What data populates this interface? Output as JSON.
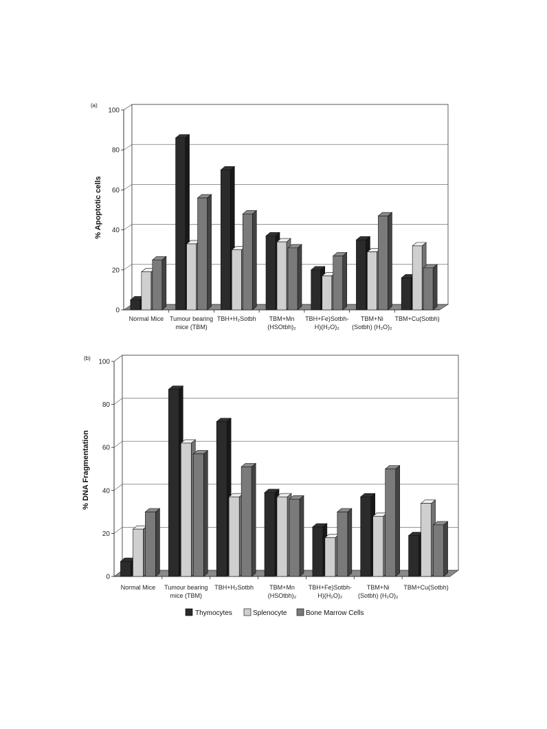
{
  "colors": {
    "thymocytes": "#2b2b2b",
    "splenocyte": "#cfcfcf",
    "bone_marrow": "#7a7a7a",
    "floor": "#8a8a8a",
    "grid": "#555555"
  },
  "legend": {
    "items": [
      {
        "label": "Thymocytes",
        "color": "#2b2b2b"
      },
      {
        "label": "Splenocyte",
        "color": "#cfcfcf"
      },
      {
        "label": "Bone Marrow  Cells",
        "color": "#7a7a7a"
      }
    ]
  },
  "chart_data": [
    {
      "panel": "(a)",
      "type": "bar",
      "ylabel": "% Apoptotic cells",
      "ylim": [
        0,
        100
      ],
      "yticks": [
        "0",
        "20",
        "40",
        "60",
        "80",
        "100"
      ],
      "grid": true,
      "categories": [
        [
          "Normal Mice"
        ],
        [
          "Tumour bearing",
          "mice (TBM)"
        ],
        [
          "TBH+H₂Sotbh"
        ],
        [
          "TBM+Mn",
          "(HSOtbh)₂"
        ],
        [
          "TBH+Fe)Sotbh-",
          "H)(H₂O)₂"
        ],
        [
          "TBM+Ni",
          "(Sotbh) (H₂O)₂"
        ],
        [
          "TBM+Cu(Sotbh)"
        ]
      ],
      "series": [
        {
          "name": "Thymocytes",
          "values": [
            5,
            86,
            70,
            37,
            20,
            35,
            16
          ]
        },
        {
          "name": "Splenocyte",
          "values": [
            19,
            33,
            30,
            34,
            17,
            29,
            32
          ]
        },
        {
          "name": "Bone Marrow  Cells",
          "values": [
            25,
            56,
            48,
            31,
            27,
            47,
            21
          ]
        }
      ]
    },
    {
      "panel": "(b)",
      "type": "bar",
      "ylabel": "% DNA Fragmentation",
      "ylim": [
        0,
        100
      ],
      "yticks": [
        "0",
        "20",
        "40",
        "60",
        "80",
        "100"
      ],
      "grid": true,
      "categories": [
        [
          "Normal Mice"
        ],
        [
          "Tumour bearing",
          "mice (TBM)"
        ],
        [
          "TBH+H₂Sotbh"
        ],
        [
          "TBM+Mn",
          "(HSOtbh)₂"
        ],
        [
          "TBH+Fe)Sotbh-",
          "H)(H₂O)₂"
        ],
        [
          "TBM+Ni",
          "(Sotbh) (H₂O)₂"
        ],
        [
          "TBM+Cu(Sotbh)"
        ]
      ],
      "series": [
        {
          "name": "Thymocytes",
          "values": [
            7,
            87,
            72,
            39,
            23,
            37,
            19
          ]
        },
        {
          "name": "Splenocyte",
          "values": [
            22,
            62,
            37,
            37,
            18,
            28,
            34
          ]
        },
        {
          "name": "Bone Marrow  Cells",
          "values": [
            30,
            57,
            51,
            36,
            30,
            50,
            24
          ]
        }
      ]
    }
  ]
}
